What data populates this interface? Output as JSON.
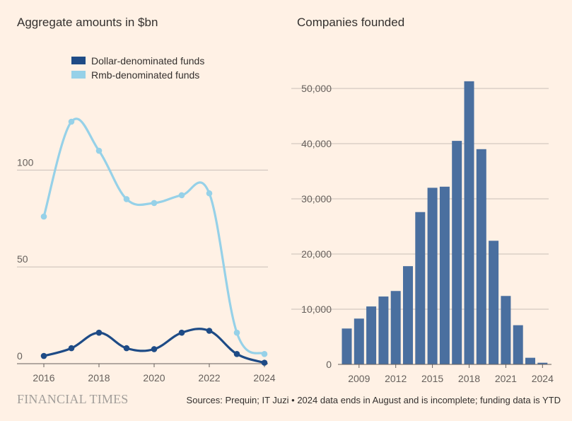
{
  "left_title": "Aggregate amounts in $bn",
  "right_title": "Companies founded",
  "footer": {
    "brand": "FINANCIAL TIMES",
    "source": "Sources: Prequin; IT Juzi • 2024 data ends in August and is incomplete; funding data is YTD"
  },
  "colors": {
    "background": "#fff1e5",
    "dollar": "#1e4b86",
    "rmb": "#96d1e8",
    "bars": "#4a6f9f",
    "grid": "#c9c0b8"
  },
  "chart_data": [
    {
      "type": "line",
      "title": "Aggregate amounts in $bn",
      "x": [
        2016,
        2017,
        2018,
        2019,
        2020,
        2021,
        2022,
        2023,
        2024
      ],
      "x_ticks": [
        2016,
        2018,
        2020,
        2022,
        2024
      ],
      "y_ticks": [
        0,
        50,
        100
      ],
      "ylim": [
        0,
        125
      ],
      "grid": true,
      "legend_placement": "top-left",
      "series": [
        {
          "name": "Dollar-denominated funds",
          "color": "#1e4b86",
          "values": [
            4,
            8,
            16,
            8,
            7.5,
            16,
            17,
            5,
            0.5
          ]
        },
        {
          "name": "Rmb-denominated funds",
          "color": "#96d1e8",
          "values": [
            76,
            125,
            110,
            85,
            83,
            87,
            88,
            16,
            5
          ]
        }
      ]
    },
    {
      "type": "bar",
      "title": "Companies founded",
      "categories": [
        2008,
        2009,
        2010,
        2011,
        2012,
        2013,
        2014,
        2015,
        2016,
        2017,
        2018,
        2019,
        2020,
        2021,
        2022,
        2023,
        2024
      ],
      "x_ticks": [
        2009,
        2012,
        2015,
        2018,
        2021,
        2024
      ],
      "values": [
        6500,
        8300,
        10500,
        12300,
        13300,
        17800,
        27600,
        32000,
        32200,
        40500,
        51300,
        39000,
        22400,
        12400,
        7100,
        1200,
        300
      ],
      "y_ticks": [
        0,
        10000,
        20000,
        30000,
        40000,
        50000
      ],
      "y_tick_labels": [
        "0",
        "10,000",
        "20,000",
        "30,000",
        "40,000",
        "50,000"
      ],
      "ylim": [
        0,
        52000
      ],
      "grid": true
    }
  ]
}
